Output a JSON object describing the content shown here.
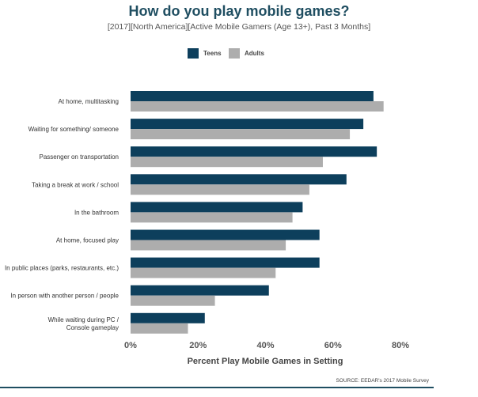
{
  "chart_data": {
    "type": "bar",
    "orientation": "horizontal",
    "title": "How do you play mobile games?",
    "subtitle": "[2017][North America][Active Mobile Gamers (Age 13+), Past 3 Months]",
    "xlabel": "Percent Play Mobile Games in Setting",
    "categories": [
      "At home, multitasking",
      "Waiting for something/ someone",
      "Passenger on transportation",
      "Taking a break at work / school",
      "In the bathroom",
      "At home, focused play",
      "In public places (parks, restaurants, etc.)",
      "In person with another person / people",
      [
        "While waiting during PC /",
        "Console gameplay"
      ]
    ],
    "series": [
      {
        "name": "Teens",
        "color": "#0d3f5c",
        "values": [
          72,
          69,
          73,
          64,
          51,
          56,
          56,
          41,
          22
        ]
      },
      {
        "name": "Adults",
        "color": "#adadad",
        "values": [
          75,
          65,
          57,
          53,
          48,
          46,
          43,
          25,
          17
        ]
      }
    ],
    "xlim": [
      0,
      80
    ],
    "xticks": [
      "0%",
      "20%",
      "40%",
      "60%",
      "80%"
    ],
    "legend_position": "top",
    "grid": false,
    "source": "SOURCE: EEDAR's 2017 Mobile Survey"
  }
}
